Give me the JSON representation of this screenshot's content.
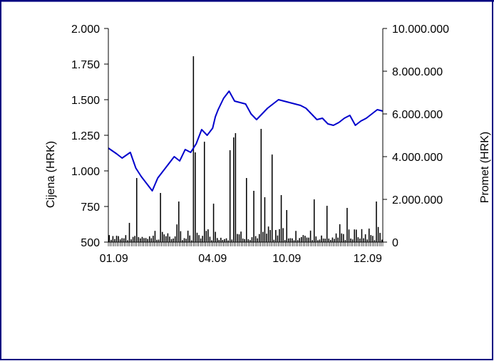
{
  "chart_data": {
    "type": "bar+line",
    "title": "",
    "x_tick_labels": [
      "01.09",
      "04.09",
      "10.09",
      "12.09"
    ],
    "y_left": {
      "label": "Cijena (HRK)",
      "range": [
        500,
        2000
      ],
      "tick_values": [
        500,
        750,
        1000,
        1250,
        1500,
        1750,
        2000
      ],
      "tick_labels": [
        "500",
        "750",
        "1.000",
        "1.250",
        "1.500",
        "1.750",
        "2.000"
      ]
    },
    "y_right": {
      "label": "Promet (HRK)",
      "range": [
        0,
        10000000
      ],
      "tick_values": [
        0,
        2000000,
        4000000,
        6000000,
        8000000,
        10000000
      ],
      "tick_labels": [
        "0",
        "2.000.000",
        "4.000.000",
        "6.000.000",
        "8.000.000",
        "10.000.000"
      ]
    },
    "grid": false,
    "legend": "none",
    "price_color": "#0000cc",
    "volume_color": "#000000",
    "frame_color": "#000080",
    "series": [
      {
        "axis": "left",
        "type": "line",
        "x": [
          0,
          0.03,
          0.05,
          0.08,
          0.1,
          0.12,
          0.14,
          0.16,
          0.18,
          0.2,
          0.22,
          0.24,
          0.26,
          0.28,
          0.3,
          0.32,
          0.34,
          0.36,
          0.38,
          0.39,
          0.4,
          0.42,
          0.44,
          0.46,
          0.48,
          0.5,
          0.52,
          0.54,
          0.56,
          0.58,
          0.6,
          0.62,
          0.64,
          0.66,
          0.68,
          0.7,
          0.72,
          0.74,
          0.76,
          0.78,
          0.8,
          0.82,
          0.84,
          0.86,
          0.88,
          0.9,
          0.92,
          0.94,
          0.96,
          0.98,
          1.0
        ],
        "values": [
          1160,
          1120,
          1090,
          1130,
          1020,
          960,
          910,
          860,
          950,
          1000,
          1050,
          1100,
          1070,
          1150,
          1130,
          1190,
          1290,
          1250,
          1300,
          1380,
          1430,
          1510,
          1560,
          1490,
          1480,
          1470,
          1400,
          1360,
          1400,
          1440,
          1470,
          1500,
          1490,
          1480,
          1470,
          1460,
          1440,
          1400,
          1360,
          1370,
          1330,
          1320,
          1340,
          1370,
          1390,
          1320,
          1350,
          1370,
          1400,
          1430,
          1420
        ]
      },
      {
        "axis": "right",
        "type": "bar",
        "note_x_range": [
          0,
          1
        ],
        "spikes": [
          {
            "x": 0.1,
            "value": 3000000
          },
          {
            "x": 0.19,
            "value": 2300000
          },
          {
            "x": 0.255,
            "value": 1900000
          },
          {
            "x": 0.308,
            "value": 8700000
          },
          {
            "x": 0.318,
            "value": 4200000
          },
          {
            "x": 0.35,
            "value": 4700000
          },
          {
            "x": 0.38,
            "value": 1800000
          },
          {
            "x": 0.44,
            "value": 4300000
          },
          {
            "x": 0.455,
            "value": 4900000
          },
          {
            "x": 0.465,
            "value": 5100000
          },
          {
            "x": 0.5,
            "value": 3000000
          },
          {
            "x": 0.53,
            "value": 2400000
          },
          {
            "x": 0.555,
            "value": 5300000
          },
          {
            "x": 0.57,
            "value": 2100000
          },
          {
            "x": 0.6,
            "value": 4100000
          },
          {
            "x": 0.63,
            "value": 2200000
          },
          {
            "x": 0.65,
            "value": 1500000
          },
          {
            "x": 0.75,
            "value": 2000000
          },
          {
            "x": 0.8,
            "value": 1700000
          },
          {
            "x": 0.87,
            "value": 1600000
          },
          {
            "x": 0.98,
            "value": 1900000
          }
        ]
      }
    ]
  }
}
